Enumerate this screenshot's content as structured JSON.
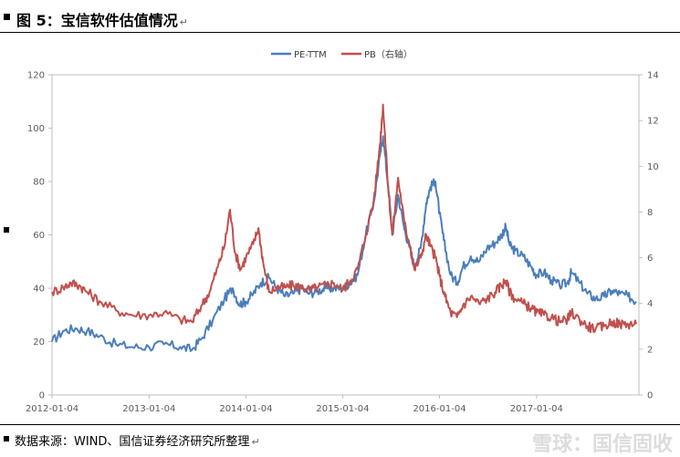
{
  "header": {
    "title": "图 5：宝信软件估值情况",
    "mark": "↵"
  },
  "footer": {
    "source": "数据来源：WIND、国信证券经济研究所整理",
    "mark": "↵",
    "watermark": "雪球：国信固收"
  },
  "chart_data": {
    "type": "line",
    "title": "",
    "legend_position": "top-center",
    "x_ticks": [
      "2012-01-04",
      "2013-01-04",
      "2014-01-04",
      "2015-01-04",
      "2016-01-04",
      "2017-01-04"
    ],
    "y_left": {
      "min": 0,
      "max": 120,
      "step": 20,
      "ticks": [
        "0",
        "20",
        "40",
        "60",
        "80",
        "100",
        "120"
      ]
    },
    "y_right": {
      "min": 0,
      "max": 14,
      "step": 2,
      "ticks": [
        "0",
        "2",
        "4",
        "6",
        "8",
        "10",
        "12",
        "14"
      ]
    },
    "grid": false,
    "series": [
      {
        "name": "PE-TTM",
        "axis": "left",
        "color": "#4a7ebb",
        "points": [
          [
            "2012-01-04",
            20
          ],
          [
            "2012-02-15",
            24
          ],
          [
            "2012-04-01",
            25
          ],
          [
            "2012-05-15",
            24
          ],
          [
            "2012-07-01",
            22
          ],
          [
            "2012-09-01",
            19
          ],
          [
            "2012-11-01",
            18
          ],
          [
            "2013-01-04",
            18
          ],
          [
            "2013-03-01",
            19
          ],
          [
            "2013-05-01",
            18
          ],
          [
            "2013-06-15",
            17
          ],
          [
            "2013-07-20",
            21
          ],
          [
            "2013-09-01",
            28
          ],
          [
            "2013-10-15",
            36
          ],
          [
            "2013-11-15",
            40
          ],
          [
            "2013-12-10",
            34
          ],
          [
            "2014-01-04",
            35
          ],
          [
            "2014-02-01",
            38
          ],
          [
            "2014-03-01",
            42
          ],
          [
            "2014-04-01",
            44
          ],
          [
            "2014-05-01",
            40
          ],
          [
            "2014-06-01",
            37
          ],
          [
            "2014-07-01",
            38
          ],
          [
            "2014-08-01",
            40
          ],
          [
            "2014-09-01",
            38
          ],
          [
            "2014-10-01",
            39
          ],
          [
            "2014-11-01",
            40
          ],
          [
            "2014-12-01",
            40
          ],
          [
            "2015-01-04",
            40
          ],
          [
            "2015-02-01",
            42
          ],
          [
            "2015-03-01",
            45
          ],
          [
            "2015-04-01",
            60
          ],
          [
            "2015-05-01",
            72
          ],
          [
            "2015-05-25",
            90
          ],
          [
            "2015-06-05",
            97
          ],
          [
            "2015-06-25",
            78
          ],
          [
            "2015-07-10",
            60
          ],
          [
            "2015-08-01",
            75
          ],
          [
            "2015-08-25",
            62
          ],
          [
            "2015-09-15",
            55
          ],
          [
            "2015-10-01",
            48
          ],
          [
            "2015-10-25",
            55
          ],
          [
            "2015-11-15",
            72
          ],
          [
            "2015-12-01",
            78
          ],
          [
            "2015-12-20",
            80
          ],
          [
            "2016-01-04",
            68
          ],
          [
            "2016-01-20",
            58
          ],
          [
            "2016-02-15",
            45
          ],
          [
            "2016-03-10",
            42
          ],
          [
            "2016-04-01",
            48
          ],
          [
            "2016-05-01",
            52
          ],
          [
            "2016-06-01",
            50
          ],
          [
            "2016-07-01",
            55
          ],
          [
            "2016-08-01",
            57
          ],
          [
            "2016-08-25",
            60
          ],
          [
            "2016-09-10",
            63
          ],
          [
            "2016-09-25",
            56
          ],
          [
            "2016-10-15",
            54
          ],
          [
            "2016-11-15",
            52
          ],
          [
            "2016-12-15",
            48
          ],
          [
            "2017-01-04",
            45
          ],
          [
            "2017-02-01",
            46
          ],
          [
            "2017-03-01",
            43
          ],
          [
            "2017-04-01",
            41
          ],
          [
            "2017-05-01",
            42
          ],
          [
            "2017-05-15",
            46
          ],
          [
            "2017-06-15",
            42
          ],
          [
            "2017-07-15",
            38
          ],
          [
            "2017-08-15",
            36
          ],
          [
            "2017-09-15",
            37
          ],
          [
            "2017-10-15",
            39
          ],
          [
            "2017-11-15",
            38
          ],
          [
            "2017-12-15",
            37
          ],
          [
            "2018-01-15",
            35
          ]
        ]
      },
      {
        "name": "PB（右轴）",
        "axis": "right",
        "color": "#c0504d",
        "points": [
          [
            "2012-01-04",
            4.5
          ],
          [
            "2012-02-15",
            4.7
          ],
          [
            "2012-03-15",
            4.9
          ],
          [
            "2012-04-15",
            4.8
          ],
          [
            "2012-05-15",
            4.5
          ],
          [
            "2012-07-01",
            4.1
          ],
          [
            "2012-09-01",
            3.7
          ],
          [
            "2012-11-01",
            3.5
          ],
          [
            "2013-01-04",
            3.5
          ],
          [
            "2013-03-01",
            3.6
          ],
          [
            "2013-05-01",
            3.3
          ],
          [
            "2013-06-15",
            3.2
          ],
          [
            "2013-07-20",
            3.9
          ],
          [
            "2013-08-20",
            4.5
          ],
          [
            "2013-09-20",
            5.6
          ],
          [
            "2013-10-15",
            6.5
          ],
          [
            "2013-11-05",
            8.1
          ],
          [
            "2013-11-25",
            6.2
          ],
          [
            "2013-12-15",
            5.5
          ],
          [
            "2014-01-04",
            6.0
          ],
          [
            "2014-02-01",
            6.6
          ],
          [
            "2014-02-20",
            7.3
          ],
          [
            "2014-03-10",
            5.8
          ],
          [
            "2014-04-01",
            4.5
          ],
          [
            "2014-05-01",
            4.7
          ],
          [
            "2014-06-01",
            4.7
          ],
          [
            "2014-07-01",
            4.8
          ],
          [
            "2014-08-01",
            4.7
          ],
          [
            "2014-09-01",
            4.6
          ],
          [
            "2014-10-01",
            4.7
          ],
          [
            "2014-11-01",
            4.8
          ],
          [
            "2014-12-01",
            4.9
          ],
          [
            "2015-01-04",
            4.6
          ],
          [
            "2015-02-01",
            5.0
          ],
          [
            "2015-03-01",
            5.5
          ],
          [
            "2015-04-01",
            7.0
          ],
          [
            "2015-05-01",
            8.5
          ],
          [
            "2015-05-25",
            11.0
          ],
          [
            "2015-06-05",
            12.7
          ],
          [
            "2015-06-25",
            9.0
          ],
          [
            "2015-07-10",
            7.0
          ],
          [
            "2015-08-01",
            9.5
          ],
          [
            "2015-08-25",
            7.5
          ],
          [
            "2015-09-15",
            6.5
          ],
          [
            "2015-10-01",
            5.5
          ],
          [
            "2015-10-25",
            6.0
          ],
          [
            "2015-11-15",
            7.0
          ],
          [
            "2015-12-01",
            6.5
          ],
          [
            "2015-12-20",
            6.0
          ],
          [
            "2016-01-04",
            5.2
          ],
          [
            "2016-01-25",
            4.3
          ],
          [
            "2016-02-15",
            3.6
          ],
          [
            "2016-03-10",
            3.4
          ],
          [
            "2016-04-01",
            3.9
          ],
          [
            "2016-05-01",
            4.3
          ],
          [
            "2016-06-01",
            4.0
          ],
          [
            "2016-07-01",
            4.2
          ],
          [
            "2016-08-01",
            4.5
          ],
          [
            "2016-08-25",
            4.8
          ],
          [
            "2016-09-10",
            5.0
          ],
          [
            "2016-09-25",
            4.5
          ],
          [
            "2016-10-15",
            4.2
          ],
          [
            "2016-11-15",
            4.0
          ],
          [
            "2016-12-15",
            3.8
          ],
          [
            "2017-01-04",
            3.6
          ],
          [
            "2017-02-01",
            3.5
          ],
          [
            "2017-03-01",
            3.4
          ],
          [
            "2017-04-01",
            3.2
          ],
          [
            "2017-05-01",
            3.3
          ],
          [
            "2017-05-15",
            3.6
          ],
          [
            "2017-06-15",
            3.3
          ],
          [
            "2017-07-15",
            3.0
          ],
          [
            "2017-08-15",
            2.9
          ],
          [
            "2017-09-15",
            3.0
          ],
          [
            "2017-10-15",
            3.2
          ],
          [
            "2017-11-15",
            3.1
          ],
          [
            "2017-12-15",
            3.1
          ],
          [
            "2018-01-15",
            3.1
          ]
        ]
      }
    ]
  }
}
